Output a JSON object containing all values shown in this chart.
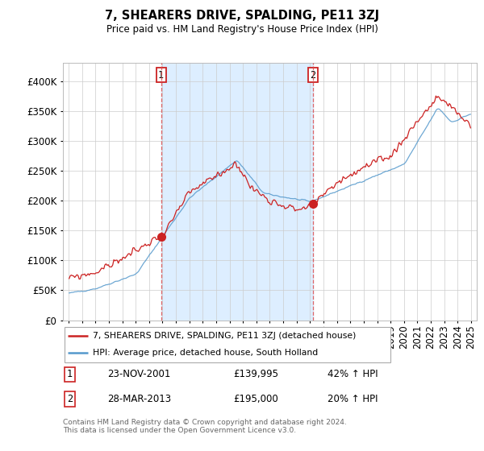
{
  "title": "7, SHEARERS DRIVE, SPALDING, PE11 3ZJ",
  "subtitle": "Price paid vs. HM Land Registry's House Price Index (HPI)",
  "legend_entry1": "7, SHEARERS DRIVE, SPALDING, PE11 3ZJ (detached house)",
  "legend_entry2": "HPI: Average price, detached house, South Holland",
  "transaction1_date": "23-NOV-2001",
  "transaction1_price": "£139,995",
  "transaction1_hpi": "42% ↑ HPI",
  "transaction2_date": "28-MAR-2013",
  "transaction2_price": "£195,000",
  "transaction2_hpi": "20% ↑ HPI",
  "footnote": "Contains HM Land Registry data © Crown copyright and database right 2024.\nThis data is licensed under the Open Government Licence v3.0.",
  "hpi_color": "#5599cc",
  "price_color": "#cc2222",
  "shade_color": "#ddeeff",
  "vline_color": "#dd4444",
  "yticks": [
    0,
    50000,
    100000,
    150000,
    200000,
    250000,
    300000,
    350000,
    400000
  ],
  "t1_year": 2001.896,
  "t2_year": 2013.204,
  "price_t1": 139995,
  "price_t2": 195000
}
